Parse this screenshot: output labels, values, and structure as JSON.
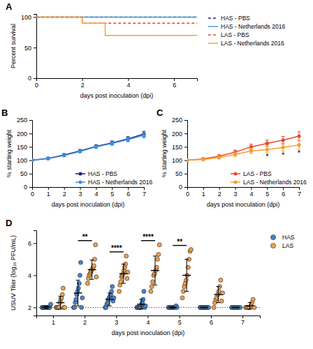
{
  "chart_data": [
    {
      "type": "step",
      "title": "A",
      "x_label": "days post inoculation (dpi)",
      "y_label": "Percent survival",
      "x": [
        0,
        1,
        2,
        3,
        4,
        5,
        6,
        7
      ],
      "xlim": [
        0,
        7
      ],
      "xticks": [
        0,
        2,
        4,
        6
      ],
      "ylim": [
        0,
        105
      ],
      "yticks": [
        0,
        50,
        100
      ],
      "legend": "right",
      "series": [
        {
          "name": "HAS - PBS",
          "color": "#1c2a80",
          "line_style": "dashed",
          "values": [
            100,
            100,
            100,
            100,
            100,
            100,
            100,
            100
          ]
        },
        {
          "name": "HAS - Netherlands 2016",
          "color": "#4d9be0",
          "line_style": "solid",
          "values": [
            100,
            100,
            100,
            100,
            100,
            100,
            100,
            100
          ]
        },
        {
          "name": "LAS - PBS",
          "color": "#e8452c",
          "line_style": "dashed",
          "values": [
            100,
            100,
            90,
            90,
            90,
            90,
            90,
            90
          ]
        },
        {
          "name": "LAS - Netherlands 2016",
          "color": "#f2a533",
          "line_style": "solid",
          "values": [
            100,
            100,
            90,
            70,
            70,
            70,
            70,
            70
          ]
        }
      ]
    },
    {
      "type": "line",
      "title": "B",
      "x_label": "days post inoculation (dpi)",
      "y_label": "% starting weight",
      "x": [
        0,
        1,
        2,
        3,
        4,
        5,
        6,
        7
      ],
      "xlim": [
        0,
        7
      ],
      "xticks": [
        0,
        1,
        2,
        3,
        4,
        5,
        6,
        7
      ],
      "ylim": [
        0,
        250
      ],
      "yticks": [
        0,
        50,
        100,
        150,
        200,
        250
      ],
      "legend": "lower right",
      "series": [
        {
          "name": "HAS - PBS",
          "color": "#1a237e",
          "marker": "circle",
          "line_style": "solid",
          "values": [
            100,
            107,
            120,
            135,
            152,
            165,
            180,
            198
          ],
          "errors": [
            0,
            3,
            4,
            5,
            6,
            7,
            8,
            10
          ]
        },
        {
          "name": "HAS - Netherlands 2016",
          "color": "#3f8fdc",
          "marker": "circle",
          "line_style": "solid",
          "values": [
            100,
            106,
            118,
            133,
            150,
            163,
            177,
            193
          ],
          "errors": [
            0,
            3,
            4,
            5,
            6,
            7,
            8,
            9
          ]
        }
      ]
    },
    {
      "type": "line",
      "title": "C",
      "x_label": "days post inoculation (dpi)",
      "y_label": "% starting weight",
      "x": [
        0,
        1,
        2,
        3,
        4,
        5,
        6,
        7
      ],
      "xlim": [
        0,
        7
      ],
      "xticks": [
        0,
        1,
        2,
        3,
        4,
        5,
        6,
        7
      ],
      "ylim": [
        0,
        250
      ],
      "yticks": [
        0,
        50,
        100,
        150,
        200,
        250
      ],
      "legend": "lower right",
      "series": [
        {
          "name": "LAS - PBS",
          "color": "#e84a2f",
          "marker": "circle",
          "line_style": "solid",
          "values": [
            100,
            105,
            115,
            130,
            150,
            163,
            175,
            190
          ],
          "errors": [
            0,
            3,
            5,
            8,
            10,
            12,
            14,
            16
          ]
        },
        {
          "name": "LAS - Netherlands 2016",
          "color": "#f5a030",
          "marker": "circle",
          "line_style": "solid",
          "values": [
            100,
            103,
            110,
            122,
            135,
            140,
            148,
            157
          ],
          "errors": [
            0,
            3,
            5,
            8,
            10,
            12,
            14,
            16
          ]
        }
      ],
      "annotations": [
        {
          "x": 5,
          "text": "*"
        },
        {
          "x": 6,
          "text": "*"
        },
        {
          "x": 7,
          "text": "*"
        }
      ]
    },
    {
      "type": "scatter",
      "title": "D",
      "x_label": "days post inoculation (dpi)",
      "y_label": "USUV Titer (log₁₀ PFU/mL)",
      "categories": [
        1,
        2,
        3,
        4,
        5,
        6,
        7
      ],
      "ylim": [
        1.5,
        6.8
      ],
      "yticks": [
        2,
        4,
        6
      ],
      "limit_of_detection": 2,
      "legend": "upper right",
      "series": [
        {
          "name": "HAS",
          "color": "#4a86c8",
          "marker": "circle",
          "values": [
            [
              2,
              2,
              2,
              2,
              2,
              2,
              2,
              2,
              2,
              2,
              2,
              2.2
            ],
            [
              2,
              2,
              2.3,
              2.5,
              2.8,
              3,
              3.2,
              3.5,
              4,
              4.8,
              2,
              2.6
            ],
            [
              2,
              2,
              2.2,
              2.3,
              2.5,
              2.6,
              2.7,
              2.8,
              3,
              3.3,
              2.4,
              2.6
            ],
            [
              2,
              2,
              2,
              2,
              2,
              2,
              2.2,
              2.3,
              2.5,
              3,
              2,
              2.1
            ],
            [
              2,
              2,
              2,
              2,
              2,
              2,
              2,
              2,
              2.1,
              2
            ],
            [
              2,
              2,
              2,
              2,
              2,
              2,
              2,
              2,
              2,
              2
            ],
            [
              2,
              2,
              2,
              2,
              2,
              2,
              2,
              2,
              2
            ]
          ],
          "mean": [
            2.02,
            2.9,
            2.5,
            2.2,
            2.0,
            2.0,
            2.0
          ],
          "sd": [
            0.06,
            0.8,
            0.4,
            0.3,
            0.03,
            0,
            0
          ]
        },
        {
          "name": "LAS",
          "color": "#f0a050",
          "marker": "circle",
          "values": [
            [
              2,
              2,
              2,
              2,
              2,
              2.3,
              2.5,
              2.6,
              2.8,
              3.2,
              2,
              2
            ],
            [
              3.5,
              3.8,
              4,
              4.1,
              4.2,
              4.3,
              4.4,
              4.5,
              4.6,
              5,
              5.9,
              3.9
            ],
            [
              3,
              3.4,
              3.6,
              3.9,
              4,
              4.1,
              4.3,
              4.5,
              4.7,
              5.2,
              3.8,
              4.2
            ],
            [
              3,
              3.3,
              3.6,
              4,
              4.1,
              4.3,
              4.5,
              5,
              5.3,
              5.9
            ],
            [
              2.6,
              3,
              3.3,
              3.5,
              3.7,
              4,
              4.5,
              5,
              5.5,
              5.6
            ],
            [
              2,
              2.3,
              2.5,
              2.6,
              2.8,
              3,
              3.3,
              3.7,
              2.4,
              2.9
            ],
            [
              2,
              2,
              2,
              2,
              2,
              2.1,
              2.3,
              2.5,
              2
            ]
          ],
          "mean": [
            2.3,
            4.35,
            4.1,
            4.3,
            4.0,
            2.8,
            2.1
          ],
          "sd": [
            0.4,
            0.6,
            0.6,
            0.9,
            1.0,
            0.5,
            0.2
          ]
        }
      ],
      "annotations": [
        {
          "x": 2,
          "text": "**"
        },
        {
          "x": 3,
          "text": "****"
        },
        {
          "x": 4,
          "text": "****"
        },
        {
          "x": 5,
          "text": "**"
        }
      ]
    }
  ]
}
